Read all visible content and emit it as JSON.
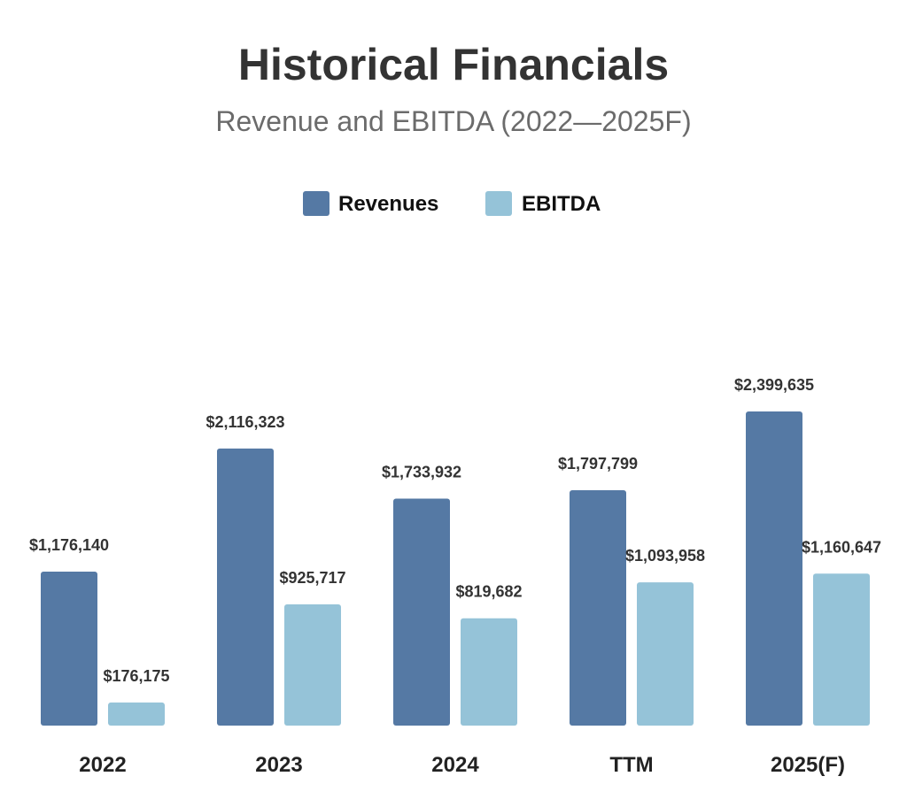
{
  "chart_data": {
    "type": "bar",
    "title": "Historical Financials",
    "subtitle": "Revenue and EBITDA (2022—2025F)",
    "categories": [
      "2022",
      "2023",
      "2024",
      "TTM",
      "2025(F)"
    ],
    "series": [
      {
        "name": "Revenues",
        "color": "#5579a4",
        "values": [
          1176140,
          2116323,
          1733932,
          1797799,
          2399635
        ],
        "labels": [
          "$1,176,140",
          "$2,116,323",
          "$1,733,932",
          "$1,797,799",
          "$2,399,635"
        ]
      },
      {
        "name": "EBITDA",
        "color": "#95c3d8",
        "values": [
          176175,
          925717,
          819682,
          1093958,
          1160647
        ],
        "labels": [
          "$176,175",
          "$925,717",
          "$819,682",
          "$1,093,958",
          "$1,160,647"
        ]
      }
    ],
    "xlabel": "",
    "ylabel": "",
    "ylim": [
      0,
      2600000
    ],
    "grid": false,
    "legend_position": "top-center"
  }
}
